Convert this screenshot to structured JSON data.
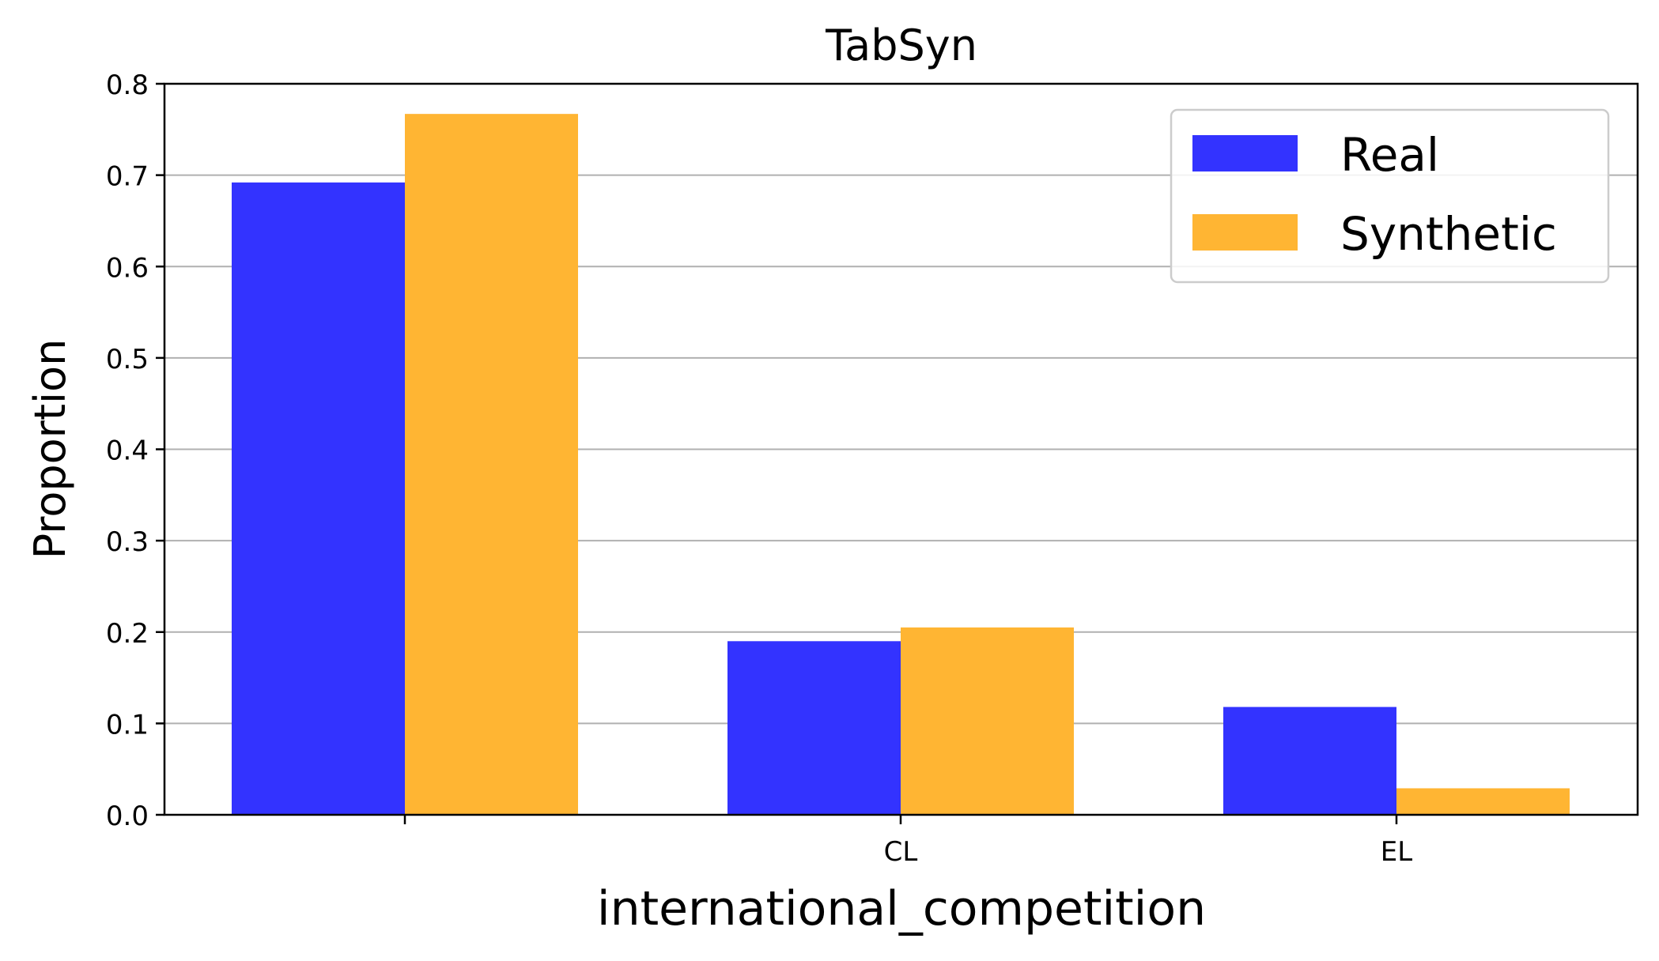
{
  "chart_data": {
    "type": "bar",
    "title": "TabSyn",
    "xlabel": "international_competition",
    "ylabel": "Proportion",
    "categories": [
      "",
      "CL",
      "EL"
    ],
    "series": [
      {
        "name": "Real",
        "values": [
          0.692,
          0.19,
          0.118
        ],
        "color": "#3333ff"
      },
      {
        "name": "Synthetic",
        "values": [
          0.767,
          0.205,
          0.029
        ],
        "color": "#ffb533"
      }
    ],
    "ylim": [
      0,
      0.8
    ],
    "yticks": [
      "0.0",
      "0.1",
      "0.2",
      "0.3",
      "0.4",
      "0.5",
      "0.6",
      "0.7",
      "0.8"
    ],
    "grid": "horizontal",
    "legend": "top-right"
  }
}
